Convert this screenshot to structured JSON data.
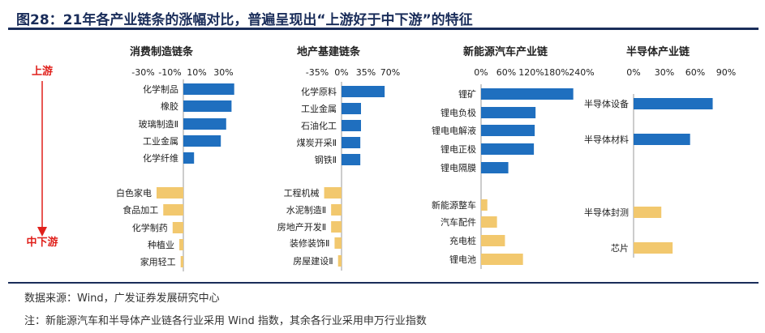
{
  "title": "图28：21年各产业链条的涨幅对比，普遍呈现出“上游好于中下游”的特征",
  "source": "数据来源：Wind，广发证券发展研究中心",
  "note": "注：新能源汽车和半导体产业链各行业采用 Wind 指数，其余各行业采用申万行业指数",
  "upstream_label": "上游",
  "downstream_label": "中下游",
  "colors": {
    "upstream": "#1f6fbf",
    "downstream": "#f2c86e",
    "axis": "#999999",
    "title": "#1a2d5a",
    "arrow_label": "#e0201b"
  },
  "chart_data": [
    {
      "type": "bar",
      "orientation": "horizontal",
      "title": "消费制造链条",
      "ticks": [
        "-30%",
        "-10%",
        "10%",
        "30%"
      ],
      "xlim": [
        -40,
        40
      ],
      "categories": [
        "化学制品",
        "橡胶",
        "玻璃制造Ⅱ",
        "工业金属",
        "化学纤维",
        "白色家电",
        "食品加工",
        "化学制药",
        "种植业",
        "家用轻工"
      ],
      "values": [
        38,
        36,
        32,
        28,
        8,
        -20,
        -15,
        -8,
        -3,
        -2
      ],
      "groups": [
        "upstream",
        "upstream",
        "upstream",
        "upstream",
        "upstream",
        "downstream",
        "downstream",
        "downstream",
        "downstream",
        "downstream"
      ]
    },
    {
      "type": "bar",
      "orientation": "horizontal",
      "title": "地产基建链条",
      "ticks": [
        "-35%",
        "0%",
        "35%",
        "70%"
      ],
      "xlim": [
        -52.5,
        87.5
      ],
      "categories": [
        "化学原料",
        "工业金属",
        "石油化工",
        "煤炭开采Ⅱ",
        "钢铁Ⅱ",
        "工程机械",
        "水泥制造Ⅱ",
        "房地产开发Ⅱ",
        "装修装饰Ⅱ",
        "房屋建设Ⅱ"
      ],
      "values": [
        62,
        28,
        28,
        27,
        27,
        -25,
        -15,
        -15,
        -10,
        -5
      ],
      "groups": [
        "upstream",
        "upstream",
        "upstream",
        "upstream",
        "upstream",
        "downstream",
        "downstream",
        "downstream",
        "downstream",
        "downstream"
      ]
    },
    {
      "type": "bar",
      "orientation": "horizontal",
      "title": "新能源汽车产业链",
      "ticks": [
        "0%",
        "60%",
        "120%",
        "180%",
        "240%"
      ],
      "xlim": [
        0,
        240
      ],
      "categories": [
        "锂矿",
        "锂电负极",
        "锂电电解液",
        "锂电正极",
        "锂电隔膜",
        "新能源整车",
        "汽车配件",
        "充电桩",
        "锂电池"
      ],
      "values": [
        220,
        130,
        128,
        126,
        65,
        15,
        38,
        57,
        100
      ],
      "groups": [
        "upstream",
        "upstream",
        "upstream",
        "upstream",
        "upstream",
        "downstream",
        "downstream",
        "downstream",
        "downstream"
      ]
    },
    {
      "type": "bar",
      "orientation": "horizontal",
      "title": "半导体产业链",
      "ticks": [
        "0%",
        "30%",
        "60%",
        "90%"
      ],
      "xlim": [
        0,
        90
      ],
      "categories": [
        "半导体设备",
        "半导体材料",
        "半导体封测",
        "芯片"
      ],
      "values": [
        77,
        55,
        27,
        38
      ],
      "groups": [
        "upstream",
        "upstream",
        "downstream",
        "downstream"
      ]
    }
  ]
}
